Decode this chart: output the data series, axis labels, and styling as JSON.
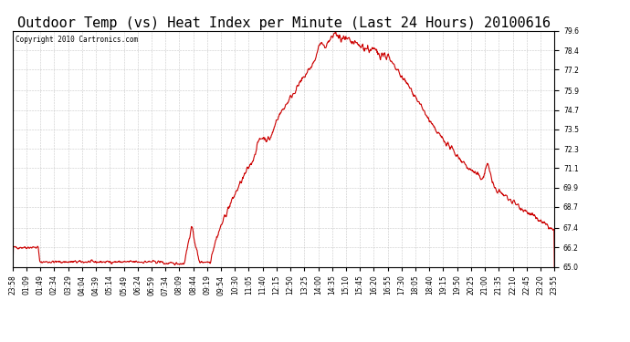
{
  "title": "Outdoor Temp (vs) Heat Index per Minute (Last 24 Hours) 20100616",
  "copyright_text": "Copyright 2010 Cartronics.com",
  "line_color": "#cc0000",
  "background_color": "#ffffff",
  "grid_color": "#bbbbbb",
  "y_min": 65.0,
  "y_max": 79.6,
  "yticks": [
    65.0,
    66.2,
    67.4,
    68.7,
    69.9,
    71.1,
    72.3,
    73.5,
    74.7,
    75.9,
    77.2,
    78.4,
    79.6
  ],
  "xtick_labels": [
    "23:58",
    "01:09",
    "01:49",
    "02:34",
    "03:29",
    "04:04",
    "04:39",
    "05:14",
    "05:49",
    "06:24",
    "06:59",
    "07:34",
    "08:09",
    "08:44",
    "09:19",
    "09:54",
    "10:30",
    "11:05",
    "11:40",
    "12:15",
    "12:50",
    "13:25",
    "14:00",
    "14:35",
    "15:10",
    "15:45",
    "16:20",
    "16:55",
    "17:30",
    "18:05",
    "18:40",
    "19:15",
    "19:50",
    "20:25",
    "21:00",
    "21:35",
    "22:10",
    "22:45",
    "23:20",
    "23:55"
  ],
  "title_fontsize": 11,
  "tick_fontsize": 5.5,
  "line_width": 0.8,
  "n_points": 1440
}
